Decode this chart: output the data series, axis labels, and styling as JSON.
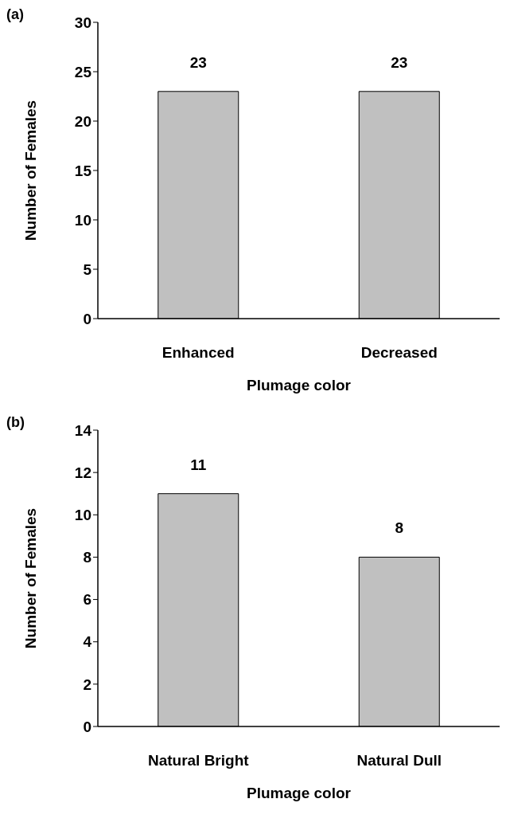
{
  "chart_data": [
    {
      "type": "bar",
      "title": "(a)",
      "categories": [
        "Enhanced",
        "Decreased"
      ],
      "values": [
        23,
        23
      ],
      "color": "#c0c0c0",
      "ylim": [
        0,
        30
      ],
      "yticks": [
        0,
        5,
        10,
        15,
        20,
        25,
        30
      ],
      "xlabel": "Plumage color",
      "ylabel": "Number of Females",
      "data_labels": true,
      "grid": false
    },
    {
      "type": "bar",
      "title": "(b)",
      "categories": [
        "Natural Bright",
        "Natural Dull"
      ],
      "values": [
        11,
        8
      ],
      "color": "#c0c0c0",
      "ylim": [
        0,
        14
      ],
      "yticks": [
        0,
        2,
        4,
        6,
        8,
        10,
        12,
        14
      ],
      "xlabel": "Plumage color",
      "ylabel": "Number of Females",
      "data_labels": true,
      "grid": false
    }
  ]
}
